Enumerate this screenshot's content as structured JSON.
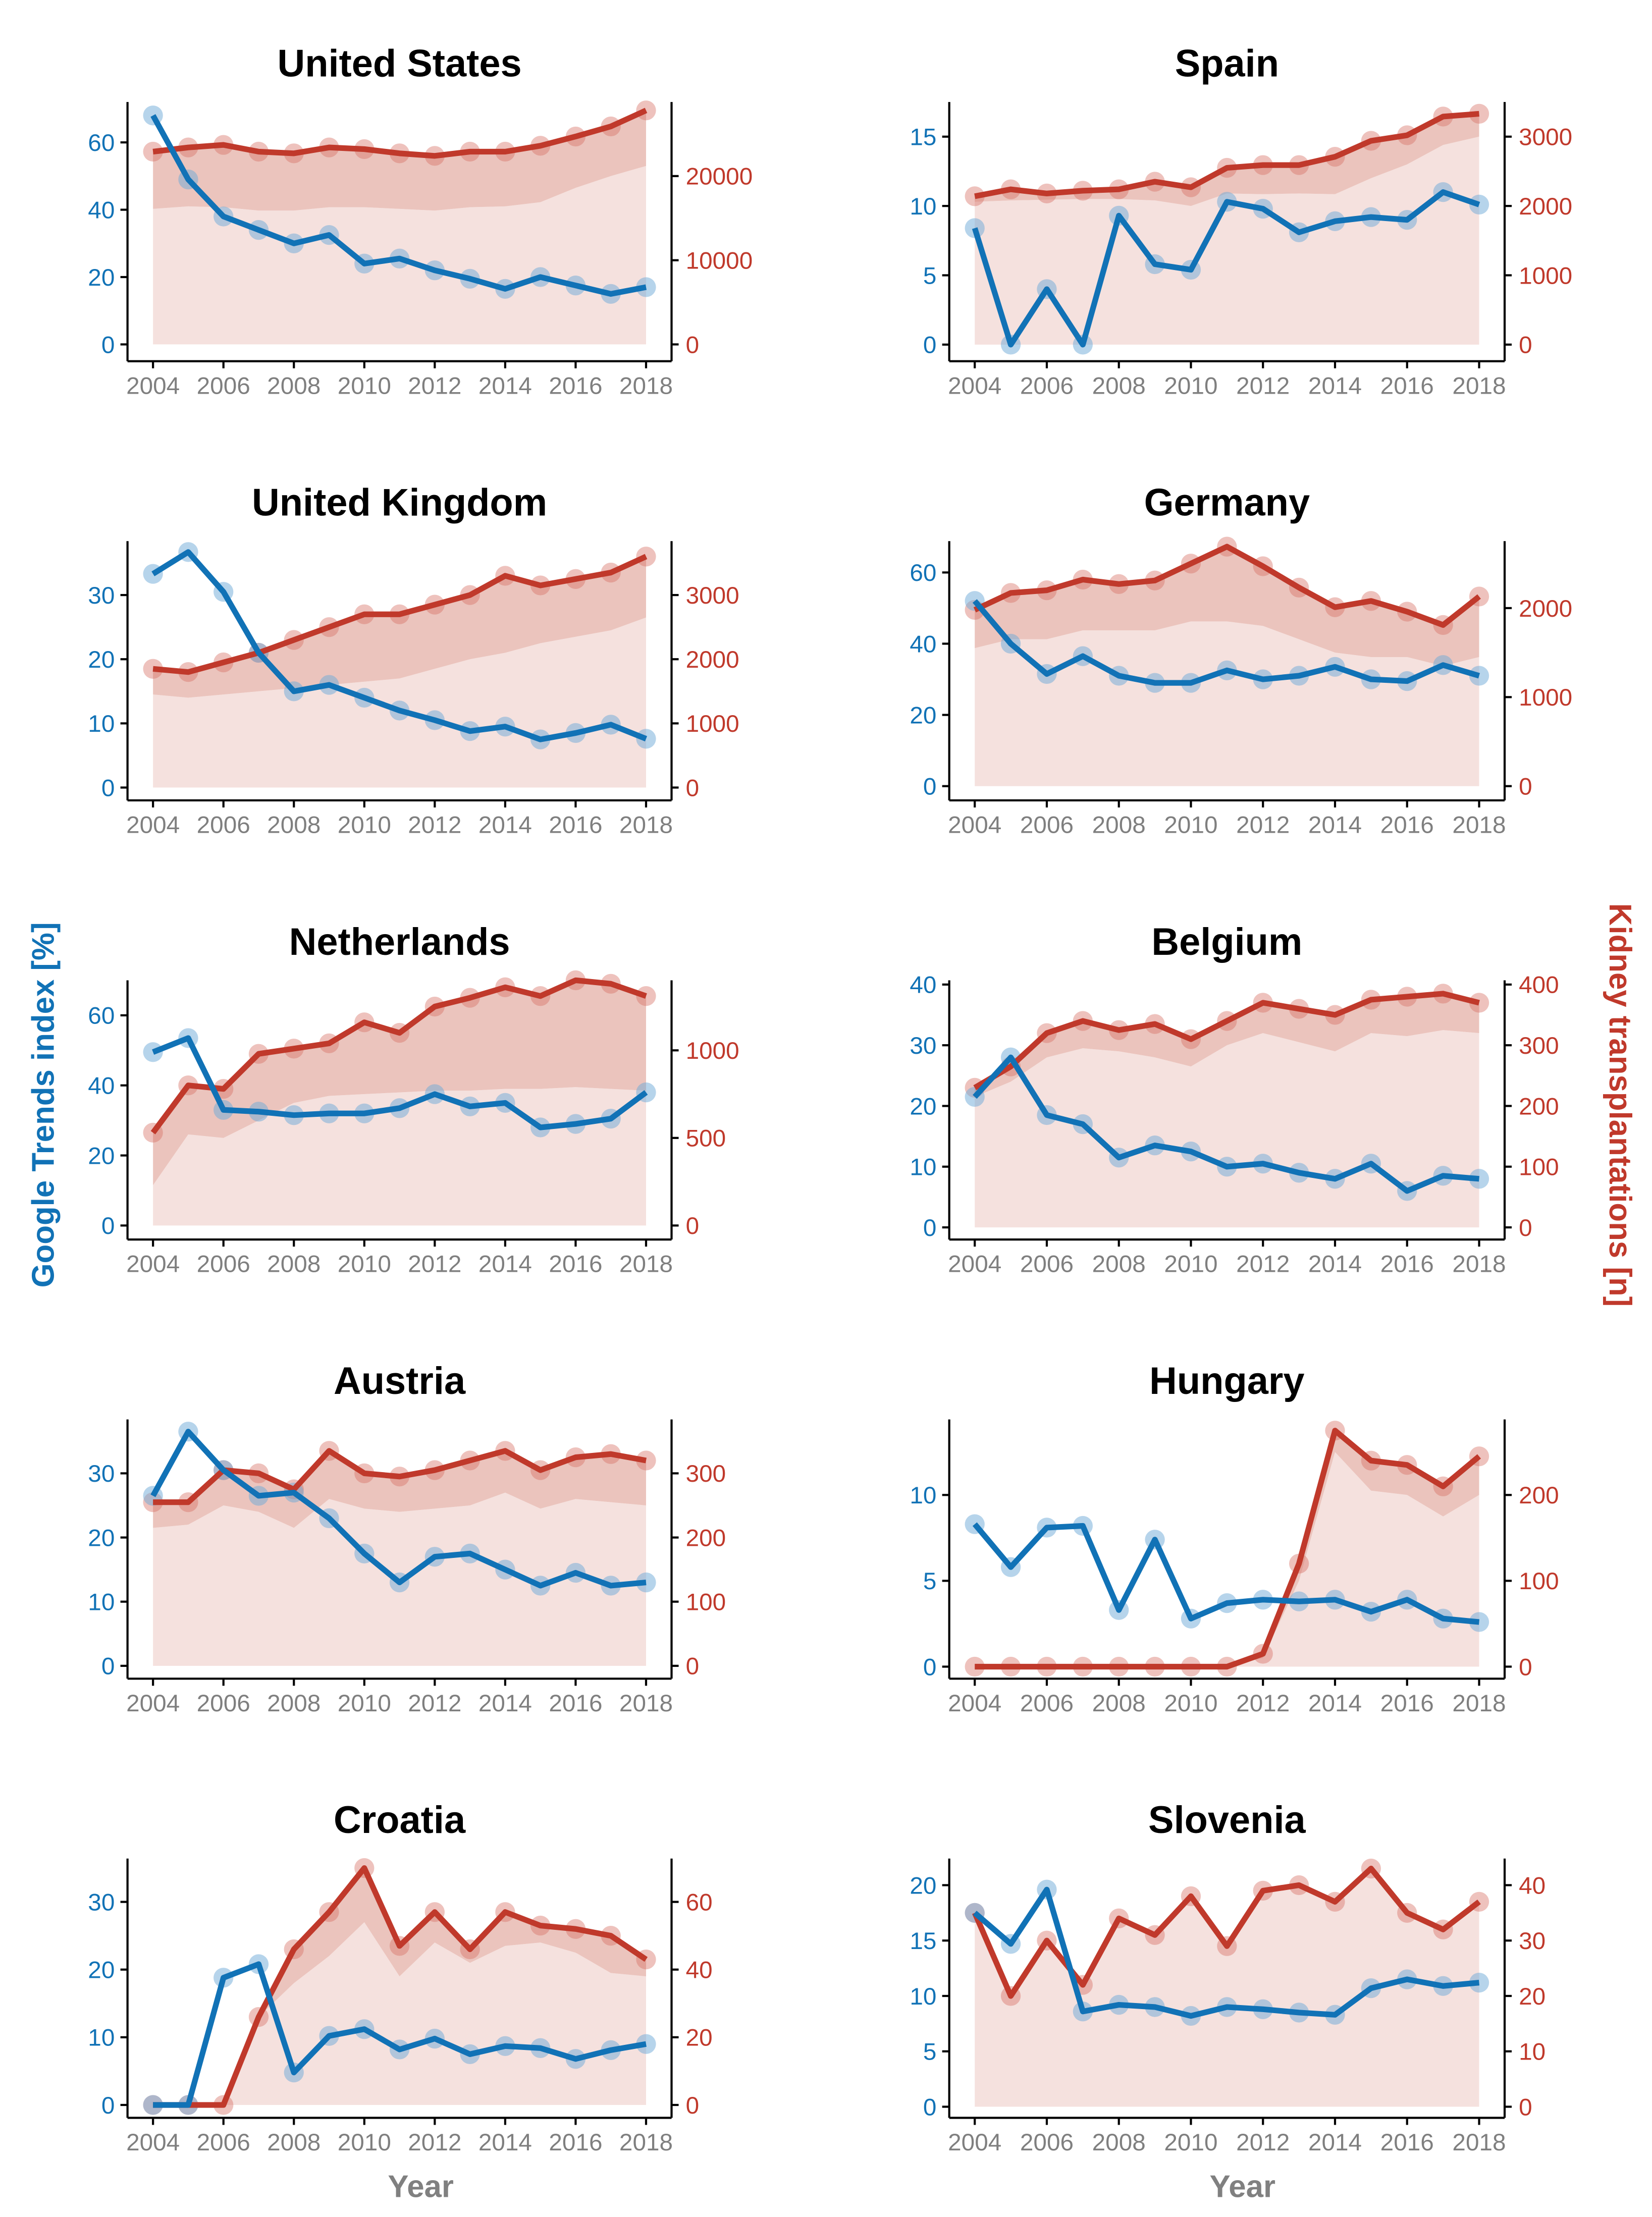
{
  "chart_data": {
    "type": "line",
    "xlabel": "Year",
    "ylabel_left": "Google Trends index [%]",
    "ylabel_right": "Kidney transplantations [n]",
    "colors": {
      "trends": "#1172b6",
      "transplants": "#c0392b",
      "fill_light": "#f5e1de",
      "fill_band": "#ebc4bd"
    },
    "x": [
      2004,
      2005,
      2006,
      2007,
      2008,
      2009,
      2010,
      2011,
      2012,
      2013,
      2014,
      2015,
      2016,
      2017,
      2018
    ],
    "x_ticks": [
      2004,
      2006,
      2008,
      2010,
      2012,
      2014,
      2016,
      2018
    ],
    "panels": [
      {
        "title": "United States",
        "ylim_left": [
          -5,
          72
        ],
        "right_to_left_ratio": 400,
        "left_ticks": [
          0,
          20,
          40,
          60
        ],
        "right_ticks": [
          0,
          10000,
          20000
        ],
        "google_trends": [
          68,
          49,
          38,
          34,
          30,
          32.5,
          24,
          25.5,
          22,
          19.5,
          16.5,
          20,
          17.5,
          15,
          17
        ],
        "transplants": [
          22900,
          23400,
          23700,
          22900,
          22700,
          23400,
          23200,
          22700,
          22400,
          22900,
          22900,
          23600,
          24700,
          25900,
          27800
        ],
        "transplants_band_lower": [
          16100,
          16400,
          16300,
          15900,
          15900,
          16300,
          16300,
          16100,
          15900,
          16300,
          16400,
          16900,
          18600,
          20000,
          21200
        ]
      },
      {
        "title": "Spain",
        "ylim_left": [
          -1.2,
          17.5
        ],
        "right_to_left_ratio": 200,
        "left_ticks": [
          0,
          5,
          10,
          15
        ],
        "right_ticks": [
          0,
          1000,
          2000,
          3000
        ],
        "google_trends": [
          8.4,
          0,
          4,
          0,
          9.3,
          5.8,
          5.4,
          10.3,
          9.8,
          8.1,
          8.9,
          9.2,
          9,
          11,
          10.1
        ],
        "transplants": [
          2140,
          2240,
          2180,
          2220,
          2240,
          2350,
          2270,
          2550,
          2590,
          2590,
          2710,
          2940,
          3020,
          3290,
          3330
        ],
        "transplants_band_lower": [
          2060,
          2080,
          2090,
          2100,
          2100,
          2080,
          2000,
          2180,
          2170,
          2180,
          2170,
          2400,
          2600,
          2880,
          3000
        ]
      },
      {
        "title": "United Kingdom",
        "ylim_left": [
          -2,
          38.4
        ],
        "right_to_left_ratio": 100,
        "left_ticks": [
          0,
          10,
          20,
          30
        ],
        "right_ticks": [
          0,
          1000,
          2000,
          3000
        ],
        "google_trends": [
          33.3,
          36.7,
          30.5,
          21,
          15,
          16,
          14,
          12,
          10.5,
          8.8,
          9.5,
          7.5,
          8.5,
          9.8,
          7.6
        ],
        "transplants": [
          1850,
          1800,
          1950,
          2100,
          2300,
          2500,
          2700,
          2700,
          2850,
          3000,
          3300,
          3150,
          3250,
          3350,
          3600
        ],
        "transplants_band_lower": [
          1450,
          1400,
          1450,
          1500,
          1550,
          1600,
          1650,
          1700,
          1850,
          2000,
          2100,
          2250,
          2350,
          2450,
          2650
        ]
      },
      {
        "title": "Germany",
        "ylim_left": [
          -4,
          68.8
        ],
        "right_to_left_ratio": 40,
        "left_ticks": [
          0,
          20,
          40,
          60
        ],
        "right_ticks": [
          0,
          1000,
          2000
        ],
        "google_trends": [
          52,
          40,
          31.5,
          36.5,
          31,
          29,
          29,
          32.5,
          30,
          31,
          33.5,
          30,
          29.5,
          34,
          31
        ],
        "transplants": [
          1980,
          2170,
          2200,
          2320,
          2270,
          2310,
          2500,
          2690,
          2470,
          2230,
          2010,
          2080,
          1960,
          1810,
          2130
        ],
        "transplants_band_lower": [
          1550,
          1650,
          1650,
          1750,
          1750,
          1750,
          1850,
          1850,
          1800,
          1650,
          1500,
          1450,
          1450,
          1350,
          1450
        ]
      },
      {
        "title": "Netherlands",
        "ylim_left": [
          -4,
          70
        ],
        "right_to_left_ratio": 20,
        "left_ticks": [
          0,
          20,
          40,
          60
        ],
        "right_ticks": [
          0,
          500,
          1000
        ],
        "google_trends": [
          49.5,
          53.5,
          33,
          32.5,
          31.5,
          32,
          32,
          33.5,
          37.5,
          34,
          35,
          28,
          29,
          30.5,
          38
        ],
        "transplants": [
          530,
          800,
          780,
          980,
          1010,
          1040,
          1160,
          1100,
          1250,
          1300,
          1360,
          1310,
          1400,
          1380,
          1310
        ],
        "transplants_band_lower": [
          230,
          520,
          500,
          600,
          700,
          740,
          750,
          760,
          770,
          770,
          780,
          780,
          790,
          780,
          770
        ]
      },
      {
        "title": "Belgium",
        "ylim_left": [
          -2,
          40.7
        ],
        "right_to_left_ratio": 10,
        "left_ticks": [
          0,
          10,
          20,
          30,
          40
        ],
        "right_ticks": [
          0,
          100,
          200,
          300,
          400
        ],
        "google_trends": [
          21.5,
          28,
          18.5,
          17,
          11.5,
          13.5,
          12.5,
          10,
          10.5,
          9,
          8,
          10.5,
          6,
          8.5,
          8
        ],
        "transplants": [
          230,
          265,
          320,
          340,
          325,
          335,
          310,
          340,
          370,
          360,
          350,
          375,
          380,
          385,
          370
        ],
        "transplants_band_lower": [
          215,
          240,
          280,
          295,
          290,
          280,
          265,
          300,
          320,
          305,
          290,
          320,
          315,
          325,
          320
        ]
      },
      {
        "title": "Austria",
        "ylim_left": [
          -2,
          38.4
        ],
        "right_to_left_ratio": 10,
        "left_ticks": [
          0,
          10,
          20,
          30
        ],
        "right_ticks": [
          0,
          100,
          200,
          300
        ],
        "google_trends": [
          26.5,
          36.5,
          30.5,
          26.5,
          27,
          23,
          17.5,
          13,
          17,
          17.5,
          15,
          12.5,
          14.5,
          12.5,
          13
        ],
        "transplants": [
          255,
          255,
          305,
          300,
          275,
          335,
          300,
          295,
          305,
          320,
          335,
          305,
          325,
          330,
          320
        ],
        "transplants_band_lower": [
          215,
          220,
          250,
          240,
          215,
          260,
          245,
          240,
          245,
          250,
          270,
          245,
          260,
          255,
          250
        ]
      },
      {
        "title": "Hungary",
        "ylim_left": [
          -0.7,
          14.4
        ],
        "right_to_left_ratio": 20,
        "left_ticks": [
          0,
          5,
          10
        ],
        "right_ticks": [
          0,
          100,
          200
        ],
        "google_trends": [
          8.3,
          5.8,
          8.1,
          8.2,
          3.3,
          7.4,
          2.8,
          3.7,
          3.9,
          3.8,
          3.9,
          3.2,
          3.9,
          2.8,
          2.6
        ],
        "transplants": [
          0,
          0,
          0,
          0,
          0,
          0,
          0,
          0,
          15,
          120,
          275,
          240,
          235,
          210,
          245
        ],
        "transplants_band_lower": [
          0,
          0,
          0,
          0,
          0,
          0,
          0,
          0,
          10,
          100,
          250,
          205,
          200,
          175,
          200
        ]
      },
      {
        "title": "Croatia",
        "ylim_left": [
          -1.9,
          36.4
        ],
        "right_to_left_ratio": 2,
        "left_ticks": [
          0,
          10,
          20,
          30
        ],
        "right_ticks": [
          0,
          20,
          40,
          60
        ],
        "google_trends": [
          0,
          0,
          18.8,
          20.8,
          4.8,
          10.2,
          11.2,
          8.2,
          9.8,
          7.5,
          8.7,
          8.4,
          6.8,
          8.1,
          9
        ],
        "transplants": [
          0,
          0,
          0,
          26,
          46,
          57,
          70,
          47,
          57,
          46,
          57,
          53,
          52,
          50,
          43
        ],
        "transplants_band_lower": [
          0,
          0,
          0,
          26,
          36,
          44,
          54,
          38,
          48,
          42,
          47,
          48,
          45,
          39,
          38
        ]
      },
      {
        "title": "Slovenia",
        "ylim_left": [
          -1,
          22.4
        ],
        "right_to_left_ratio": 2,
        "left_ticks": [
          0,
          5,
          10,
          15,
          20
        ],
        "right_ticks": [
          0,
          10,
          20,
          30,
          40
        ],
        "google_trends": [
          17.5,
          14.7,
          19.6,
          8.6,
          9.2,
          9.0,
          8.2,
          9.0,
          8.8,
          8.5,
          8.3,
          10.7,
          11.5,
          10.9,
          11.2
        ],
        "transplants": [
          35,
          20,
          30,
          22,
          34,
          31,
          38,
          29,
          39,
          40,
          37,
          43,
          35,
          32,
          37
        ],
        "transplants_band_lower": [
          35,
          20,
          30,
          22,
          34,
          31,
          38,
          29,
          39,
          40,
          37,
          43,
          35,
          32,
          37
        ]
      }
    ]
  }
}
